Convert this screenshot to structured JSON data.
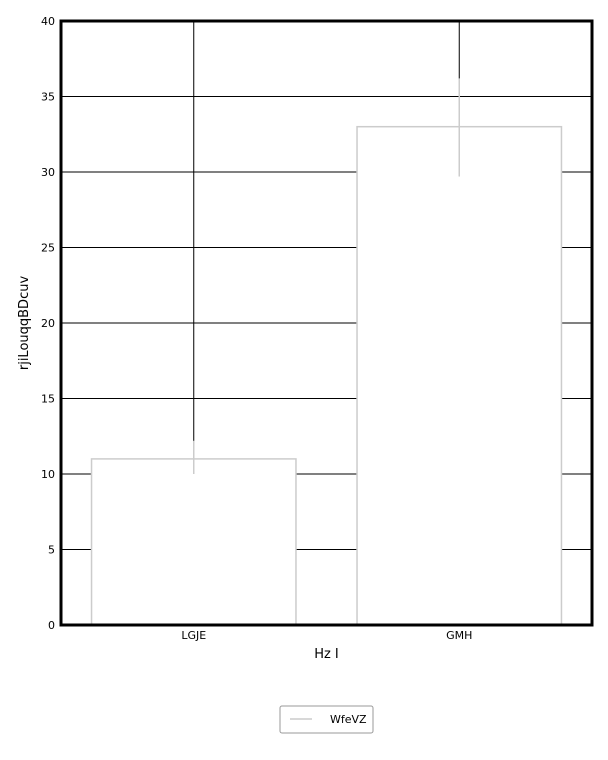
{
  "chart_data": {
    "type": "bar",
    "categories": [
      "LGJE",
      "GMH"
    ],
    "series": [
      {
        "name": "WfeVZ",
        "values": [
          11,
          33
        ],
        "error_low": [
          10,
          29.7
        ],
        "error_high": [
          12.2,
          36.2
        ],
        "color": "#cccccc"
      }
    ],
    "xlabel": "Hz I",
    "ylabel": "rjiLouqqBDcuv",
    "ylim": [
      0,
      40
    ],
    "yticks": [
      0,
      5,
      10,
      15,
      20,
      25,
      30,
      35,
      40
    ],
    "grid": "horizontal",
    "legend_position": "bottom-center",
    "category_lines": true,
    "colors": {
      "axis": "#000000",
      "grid": "#000000",
      "bar_fill": "#ffffff",
      "bar_stroke": "#cccccc",
      "error_bar": "#cccccc",
      "legend_border": "#999999"
    }
  }
}
